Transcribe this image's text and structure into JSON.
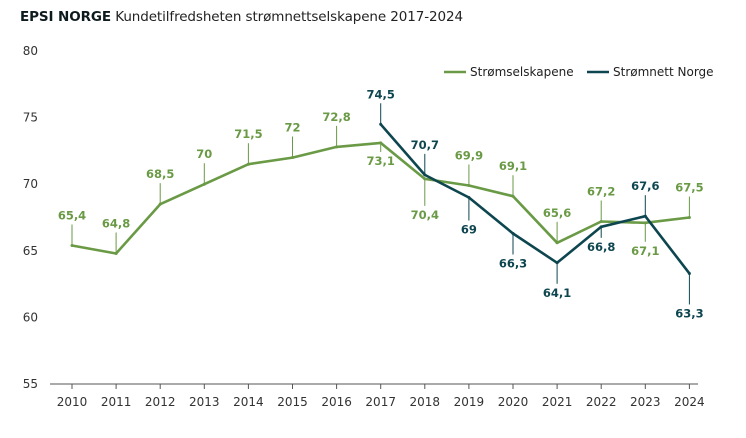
{
  "header": {
    "brand": "EPSI NORGE",
    "subtitle": "Kundetilfredsheten strømnettselskapene 2017-2024"
  },
  "colors": {
    "series_a": "#6a9a45",
    "series_b": "#0e4650",
    "axis": "#555555"
  },
  "chart_data": {
    "type": "line",
    "title": "EPSI NORGE Kundetilfredsheten strømnettselskapene 2017-2024",
    "xlabel": "",
    "ylabel": "",
    "ylim": [
      55,
      80
    ],
    "yticks": [
      55,
      60,
      65,
      70,
      75,
      80
    ],
    "grid": false,
    "legend": "top-right",
    "categories": [
      "2010",
      "2011",
      "2012",
      "2013",
      "2014",
      "2015",
      "2016",
      "2017",
      "2018",
      "2019",
      "2020",
      "2021",
      "2022",
      "2023",
      "2024"
    ],
    "series": [
      {
        "name": "Strømselskapene",
        "values": [
          65.4,
          64.8,
          68.5,
          70,
          71.5,
          72,
          72.8,
          73.1,
          70.4,
          69.9,
          69.1,
          65.6,
          67.2,
          67.1,
          67.5
        ],
        "labels": [
          "65,4",
          "64,8",
          "68,5",
          "70",
          "71,5",
          "72",
          "72,8",
          "73,1",
          "70,4",
          "69,9",
          "69,1",
          "65,6",
          "67,2",
          "67,1",
          "67,5"
        ]
      },
      {
        "name": "Strømnett Norge",
        "values": [
          null,
          null,
          null,
          null,
          null,
          null,
          null,
          74.5,
          70.7,
          69,
          66.3,
          64.1,
          66.8,
          67.6,
          63.3
        ],
        "labels": [
          null,
          null,
          null,
          null,
          null,
          null,
          null,
          "74,5",
          "70,7",
          "69",
          "66,3",
          "64,1",
          "66,8",
          "67,6",
          "63,3"
        ]
      }
    ]
  }
}
